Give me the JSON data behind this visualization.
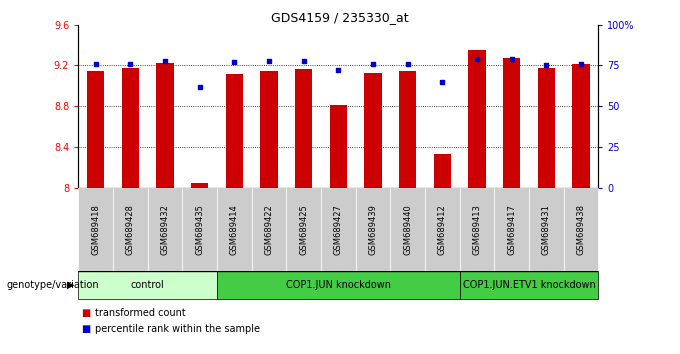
{
  "title": "GDS4159 / 235330_at",
  "samples": [
    "GSM689418",
    "GSM689428",
    "GSM689432",
    "GSM689435",
    "GSM689414",
    "GSM689422",
    "GSM689425",
    "GSM689427",
    "GSM689439",
    "GSM689440",
    "GSM689412",
    "GSM689413",
    "GSM689417",
    "GSM689431",
    "GSM689438"
  ],
  "bar_values": [
    9.15,
    9.18,
    9.22,
    8.05,
    9.12,
    9.15,
    9.17,
    8.81,
    9.13,
    9.15,
    8.33,
    9.35,
    9.27,
    9.18,
    9.21
  ],
  "dot_values": [
    76,
    76,
    78,
    62,
    77,
    78,
    78,
    72,
    76,
    76,
    65,
    79,
    79,
    75,
    76
  ],
  "ylim": [
    8.0,
    9.6
  ],
  "yticks_left": [
    8.0,
    8.4,
    8.8,
    9.2,
    9.6
  ],
  "yticks_right": [
    0,
    25,
    50,
    75,
    100
  ],
  "ytick_right_labels": [
    "0",
    "25",
    "50",
    "75",
    "100%"
  ],
  "bar_color": "#cc0000",
  "dot_color": "#0000cc",
  "group_defs": [
    {
      "start": 0,
      "end": 3,
      "color": "#ccffcc",
      "label": "control"
    },
    {
      "start": 4,
      "end": 10,
      "color": "#44cc44",
      "label": "COP1.JUN knockdown"
    },
    {
      "start": 11,
      "end": 14,
      "color": "#44cc44",
      "label": "COP1.JUN.ETV1 knockdown"
    }
  ],
  "sample_bg_color": "#cccccc",
  "genotype_label": "genotype/variation",
  "legend_bar_label": "transformed count",
  "legend_dot_label": "percentile rank within the sample",
  "bg_color": "#ffffff",
  "plot_bg_color": "#ffffff",
  "gridline_color": "#000000",
  "gridline_lw": 0.6,
  "dotted_at": [
    9.2,
    8.8,
    8.4
  ]
}
